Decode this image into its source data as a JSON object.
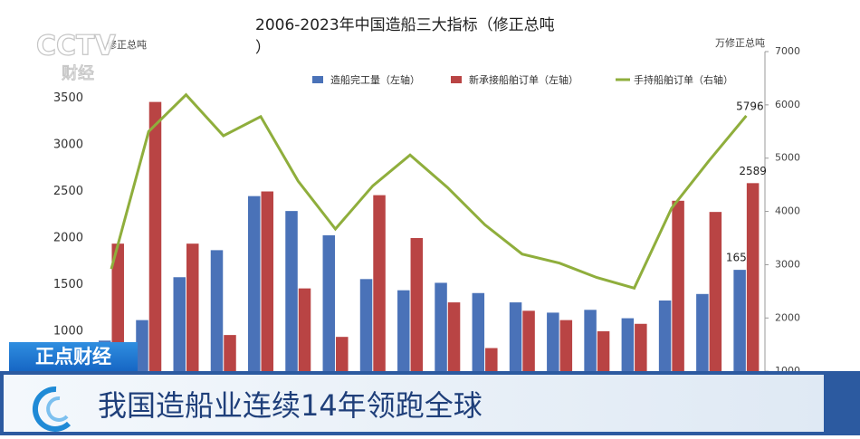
{
  "chart_data": {
    "type": "bar-line",
    "title": "2006-2023年中国造船三大指标（修正总吨）",
    "y_label": "修正总吨",
    "y2_label": "万修正总吨",
    "categories": [
      null,
      null,
      null,
      null,
      null,
      null,
      null,
      null,
      null,
      null,
      null,
      null,
      null,
      null,
      null,
      null,
      null,
      null
    ],
    "series": [
      {
        "name": "造船完工量（左轴）",
        "type": "bar",
        "color": "#4a72b8",
        "axis": "y",
        "values": [
          900,
          1120,
          1580,
          1870,
          2450,
          2290,
          2030,
          1560,
          1440,
          1520,
          1410,
          1310,
          1200,
          1230,
          1140,
          1330,
          1400,
          1659
        ]
      },
      {
        "name": "新承接船舶订单（左轴）",
        "type": "bar",
        "color": "#b94444",
        "axis": "y",
        "values": [
          1940,
          3460,
          1940,
          960,
          2500,
          1460,
          940,
          2460,
          2000,
          1310,
          820,
          1220,
          1120,
          1000,
          1080,
          2400,
          2280,
          2589
        ]
      },
      {
        "name": "手持船舶订单（右轴）",
        "type": "line",
        "color": "#8fae3c",
        "axis": "y2",
        "values": [
          2920,
          5500,
          6190,
          5420,
          5780,
          4570,
          3670,
          4480,
          5060,
          4450,
          3750,
          3200,
          3030,
          2760,
          2560,
          4060,
          4950,
          5796
        ]
      }
    ],
    "ylim": [
      0,
      4000
    ],
    "yticks": [
      1000,
      1500,
      2000,
      2500,
      3000,
      3500
    ],
    "y2lim": [
      0,
      7000
    ],
    "y2ticks": [
      1000,
      2000,
      3000,
      4000,
      5000,
      6000,
      7000
    ],
    "grid": false
  },
  "overlay": {
    "logo": "CCTV",
    "channel": "财经",
    "program": "正点财经",
    "headline": "我国造船业连续14年领跑全球"
  }
}
